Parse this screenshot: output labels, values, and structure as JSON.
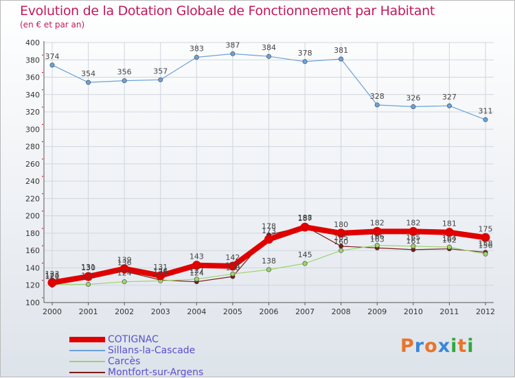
{
  "title": "Evolution de la Dotation Globale de Fonctionnement par Habitant",
  "subtitle": "(en € et par an)",
  "logo_text": "Proxiti",
  "logo_colors": [
    "#e8742a",
    "#3a86d9",
    "#e8742a",
    "#3a86d9",
    "#2eaa3c",
    "#e8742a",
    "#2eaa3c"
  ],
  "chart_data": {
    "type": "line",
    "title": "Evolution de la Dotation Globale de Fonctionnement par Habitant",
    "subtitle": "(en € et par an)",
    "xlabel": "",
    "ylabel": "",
    "ylim": [
      100,
      400
    ],
    "yticks": [
      100,
      120,
      140,
      160,
      180,
      200,
      220,
      240,
      260,
      280,
      300,
      320,
      340,
      360,
      380,
      400
    ],
    "grid": true,
    "legend_position": "bottom-left",
    "x": [
      "2000",
      "2001",
      "2002",
      "2003",
      "2004",
      "2005",
      "2006",
      "2007",
      "2008",
      "2009",
      "2010",
      "2011",
      "2012"
    ],
    "series": [
      {
        "name": "Montfort-sur-Argens",
        "color": "#7a1b1b",
        "values": [
          120,
          131,
          136,
          126,
          124,
          130,
          178,
          188,
          165,
          163,
          161,
          162,
          158
        ],
        "labels": [
          "120",
          "131",
          "136",
          "126",
          "124",
          "130",
          "178",
          "188",
          "165",
          "163",
          "161",
          "162",
          "158"
        ]
      },
      {
        "name": "Carcès",
        "color": "#9ed36a",
        "values": [
          121,
          121,
          124,
          125,
          127,
          133,
          138,
          145,
          160,
          166,
          165,
          164,
          156
        ],
        "labels": [
          "121",
          "121",
          "124",
          "125",
          "127",
          "133",
          "138",
          "145",
          "160",
          "166",
          "165",
          "164",
          "156"
        ]
      },
      {
        "name": "Sillans-la-Cascade",
        "color": "#6aa2d8",
        "values": [
          374,
          354,
          356,
          357,
          383,
          387,
          384,
          378,
          381,
          328,
          326,
          327,
          311
        ],
        "labels": [
          "374",
          "354",
          "356",
          "357",
          "383",
          "387",
          "384",
          "378",
          "381",
          "328",
          "326",
          "327",
          "311"
        ]
      },
      {
        "name": "COTIGNAC",
        "color": "#e00000",
        "values": [
          123,
          130,
          139,
          131,
          143,
          142,
          173,
          187,
          180,
          182,
          182,
          181,
          175
        ],
        "labels": [
          "123",
          "130",
          "139",
          "131",
          "143",
          "142",
          "173",
          "187",
          "180",
          "182",
          "182",
          "181",
          "175"
        ]
      }
    ]
  },
  "legend": [
    {
      "label": "COTIGNAC",
      "color": "#e00000",
      "thickness": 8
    },
    {
      "label": "Sillans-la-Cascade",
      "color": "#6aa2d8",
      "thickness": 2
    },
    {
      "label": "Carcès",
      "color": "#9ed36a",
      "thickness": 2
    },
    {
      "label": "Montfort-sur-Argens",
      "color": "#7a1b1b",
      "thickness": 2
    }
  ]
}
